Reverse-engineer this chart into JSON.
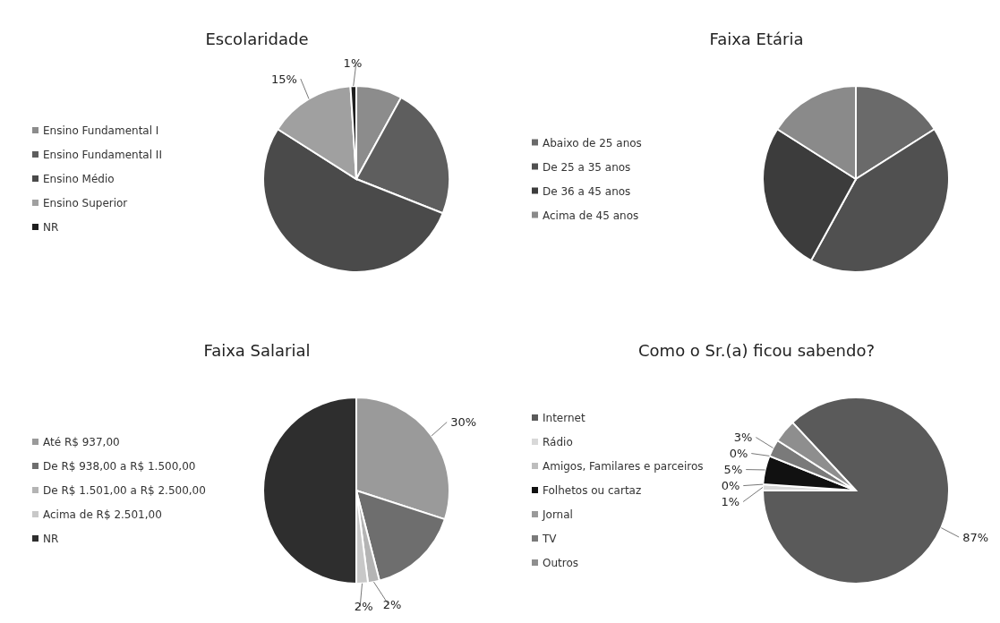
{
  "chart_data": [
    {
      "type": "pie",
      "title": "Escolaridade",
      "categories": [
        "Ensino Fundamental I",
        "Ensino Fundamental II",
        "Ensino Médio",
        "Ensino Superior",
        "NR"
      ],
      "values": [
        8,
        23,
        53,
        15,
        1
      ],
      "colors": [
        "#8c8c8c",
        "#5e5e5e",
        "#4a4a4a",
        "#a0a0a0",
        "#1e1e1e"
      ],
      "value_labels": [
        null,
        null,
        null,
        "15%",
        "1%"
      ],
      "legend": "left"
    },
    {
      "type": "pie",
      "title": "Faixa Etária",
      "categories": [
        "Abaixo de 25 anos",
        "De 25 a 35 anos",
        "De 36 a 45 anos",
        "Acima de 45 anos"
      ],
      "values": [
        16,
        42,
        26,
        16
      ],
      "colors": [
        "#6a6a6a",
        "#505050",
        "#3c3c3c",
        "#8a8a8a"
      ],
      "legend": "left"
    },
    {
      "type": "pie",
      "title": "Faixa Salarial",
      "categories": [
        "Até R$ 937,00",
        "De R$ 938,00 a R$ 1.500,00",
        "De R$ 1.501,00 a R$ 2.500,00",
        "Acima de R$ 2.501,00",
        "NR"
      ],
      "values": [
        30,
        16,
        2,
        2,
        50
      ],
      "colors": [
        "#9a9a9a",
        "#6e6e6e",
        "#b4b4b4",
        "#c8c8c8",
        "#2e2e2e"
      ],
      "value_labels": [
        "30%",
        null,
        "2%",
        "2%",
        null
      ],
      "legend": "left"
    },
    {
      "type": "pie",
      "title": "Como o Sr.(a) ficou sabendo?",
      "categories": [
        "Internet",
        "Rádio",
        "Amigos, Familares e parceiros",
        "Folhetos ou cartaz",
        "Jornal",
        "TV",
        "Outros"
      ],
      "values": [
        87,
        1,
        0,
        5,
        0,
        3,
        4
      ],
      "colors": [
        "#5a5a5a",
        "#d8d8d8",
        "#bdbdbd",
        "#111111",
        "#9a9a9a",
        "#7a7a7a",
        "#8e8e8e"
      ],
      "value_labels": [
        "87%",
        "1%",
        "0%",
        "5%",
        "0%",
        "3%",
        null
      ],
      "legend": "left"
    }
  ]
}
